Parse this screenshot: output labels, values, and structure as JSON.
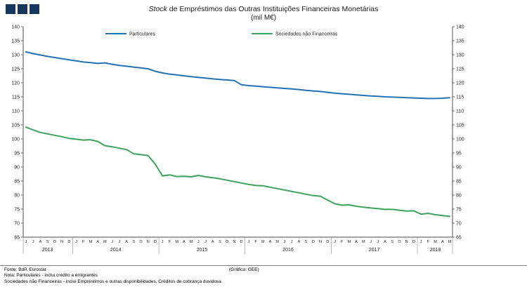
{
  "logo": {
    "color": "#17365d",
    "squares": 3
  },
  "title": {
    "italic": "Stock",
    "rest": " de Empréstimos das Outras Instituições Financeiras Monetárias",
    "subtitle": "(mil M€)"
  },
  "footer": {
    "fonte": "Fonte: BdP, Eurostat",
    "grafico": "(Gráfico: GEE)",
    "nota1": "Nota: Particulares - inclui crédito a emigrantes",
    "nota2": "Sociedades não Financeiras - inclui Empréstimos e outras disponibilidades, Créditos de cobrança duvidosa"
  },
  "chart_data": {
    "type": "line",
    "title": "Stock de Empréstimos das Outras Instituições Financeiras Monetárias (mil M€)",
    "ylabel": "",
    "xlabel": "",
    "ylim": [
      65,
      140
    ],
    "ytick_step": 5,
    "grid": false,
    "legend_position": "top-inside",
    "axis_color": "#4d4d4d",
    "years": [
      {
        "label": "2013",
        "months": [
          "J",
          "J",
          "A",
          "S",
          "O",
          "N",
          "D"
        ]
      },
      {
        "label": "2014",
        "months": [
          "J",
          "F",
          "M",
          "A",
          "M",
          "J",
          "J",
          "A",
          "S",
          "O",
          "N",
          "D"
        ]
      },
      {
        "label": "2015",
        "months": [
          "J",
          "F",
          "M",
          "A",
          "M",
          "J",
          "J",
          "A",
          "S",
          "O",
          "N",
          "D"
        ]
      },
      {
        "label": "2016",
        "months": [
          "J",
          "F",
          "M",
          "A",
          "M",
          "J",
          "J",
          "A",
          "S",
          "O",
          "N",
          "D"
        ]
      },
      {
        "label": "2017",
        "months": [
          "J",
          "F",
          "M",
          "A",
          "M",
          "J",
          "J",
          "A",
          "S",
          "O",
          "N",
          "D"
        ]
      },
      {
        "label": "2018",
        "months": [
          "J",
          "F",
          "M",
          "A",
          "M"
        ]
      }
    ],
    "series": [
      {
        "name": "Particulares",
        "color": "#2272b6",
        "values": [
          131.0,
          130.4,
          129.9,
          129.4,
          129.0,
          128.6,
          128.2,
          127.8,
          127.4,
          127.2,
          126.9,
          127.1,
          126.6,
          126.2,
          125.9,
          125.6,
          125.3,
          125.0,
          124.1,
          123.5,
          123.1,
          122.8,
          122.5,
          122.2,
          121.9,
          121.7,
          121.4,
          121.2,
          121.0,
          120.8,
          119.3,
          119.0,
          118.8,
          118.6,
          118.4,
          118.2,
          118.0,
          117.8,
          117.6,
          117.3,
          117.1,
          116.9,
          116.6,
          116.3,
          116.1,
          115.9,
          115.7,
          115.5,
          115.3,
          115.2,
          115.0,
          114.9,
          114.8,
          114.7,
          114.6,
          114.5,
          114.4,
          114.4,
          114.5,
          114.7
        ]
      },
      {
        "name": "Sociedades não Financeiras",
        "color": "#3ba35b",
        "values": [
          104.2,
          103.2,
          102.3,
          101.8,
          101.3,
          100.8,
          100.2,
          99.9,
          99.6,
          99.7,
          99.1,
          97.6,
          97.2,
          96.7,
          96.2,
          94.7,
          94.4,
          94.1,
          91.0,
          86.8,
          87.2,
          86.6,
          86.7,
          86.5,
          87.0,
          86.5,
          86.2,
          85.8,
          85.3,
          84.8,
          84.3,
          83.8,
          83.4,
          83.3,
          82.8,
          82.3,
          81.8,
          81.3,
          80.8,
          80.3,
          79.8,
          79.6,
          78.2,
          76.9,
          76.4,
          76.5,
          76.0,
          75.7,
          75.4,
          75.2,
          74.9,
          74.9,
          74.6,
          74.3,
          74.4,
          73.2,
          73.5,
          73.0,
          72.7,
          72.4
        ]
      }
    ]
  }
}
